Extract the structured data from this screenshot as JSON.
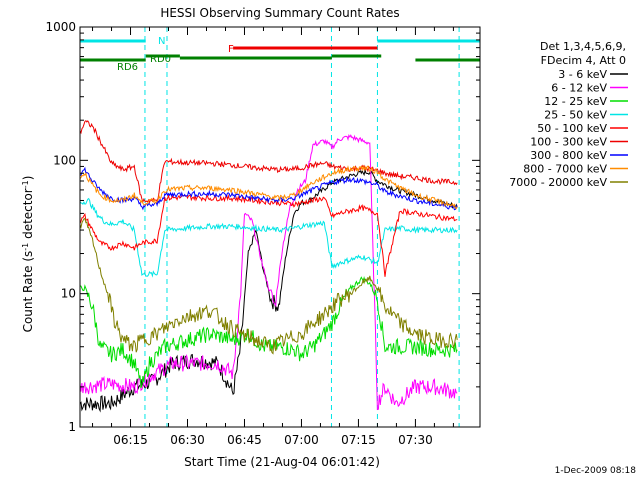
{
  "chart_data": {
    "type": "line",
    "title": "HESSI Observing Summary Count Rates",
    "xlabel": "Start Time (21-Aug-04 06:01:42)",
    "ylabel_main": "Count Rate (s",
    "ylabel_sup": "-1",
    "ylabel_rest": " detector",
    "ylabel_end": ")",
    "footer_date": "1-Dec-2009 08:18",
    "yscale": "log",
    "ylim": [
      1,
      1000
    ],
    "xlim_minutes": [
      361.7,
      467
    ],
    "x_ticks": [
      {
        "value": 375,
        "label": "06:15"
      },
      {
        "value": 390,
        "label": "06:30"
      },
      {
        "value": 405,
        "label": "06:45"
      },
      {
        "value": 420,
        "label": "07:00"
      },
      {
        "value": 435,
        "label": "07:15"
      },
      {
        "value": 450,
        "label": "07:30"
      }
    ],
    "y_ticks": [
      {
        "value": 1,
        "label": "1"
      },
      {
        "value": 10,
        "label": "10"
      },
      {
        "value": 100,
        "label": "100"
      },
      {
        "value": 1000,
        "label": "1000"
      }
    ],
    "legend_header": [
      "Det 1,3,4,5,6,9,",
      "FDecim 4, Att 0"
    ],
    "legend_placement": "right",
    "series": [
      {
        "name": "3 - 6 keV",
        "color": "#000000",
        "points": [
          [
            361.7,
            1.5
          ],
          [
            370,
            1.5
          ],
          [
            376,
            2.0
          ],
          [
            381,
            2.2
          ],
          [
            386,
            3
          ],
          [
            392,
            3.2
          ],
          [
            398,
            3
          ],
          [
            402,
            1.8
          ],
          [
            404,
            4
          ],
          [
            406,
            20
          ],
          [
            408,
            30
          ],
          [
            410,
            15
          ],
          [
            412,
            9
          ],
          [
            414,
            8
          ],
          [
            416,
            20
          ],
          [
            418,
            40
          ],
          [
            420,
            48
          ],
          [
            422,
            50
          ],
          [
            425,
            58
          ],
          [
            428,
            68
          ],
          [
            432,
            75
          ],
          [
            435,
            80
          ],
          [
            438,
            82
          ],
          [
            440,
            70
          ],
          [
            445,
            60
          ],
          [
            450,
            55
          ],
          [
            455,
            50
          ],
          [
            461,
            45
          ]
        ]
      },
      {
        "name": "6 - 12 keV",
        "color": "#ff00ff",
        "points": [
          [
            361.7,
            2
          ],
          [
            370,
            2.1
          ],
          [
            376,
            2.0
          ],
          [
            381,
            2.5
          ],
          [
            386,
            3
          ],
          [
            392,
            3
          ],
          [
            398,
            3
          ],
          [
            402,
            2.5
          ],
          [
            404,
            10
          ],
          [
            405,
            40
          ],
          [
            407,
            35
          ],
          [
            409,
            20
          ],
          [
            411,
            12
          ],
          [
            413,
            8
          ],
          [
            415,
            22
          ],
          [
            417,
            45
          ],
          [
            419,
            60
          ],
          [
            421,
            70
          ],
          [
            423,
            130
          ],
          [
            426,
            140
          ],
          [
            428,
            125
          ],
          [
            430,
            145
          ],
          [
            433,
            150
          ],
          [
            436,
            140
          ],
          [
            438,
            135
          ],
          [
            440,
            1.5
          ],
          [
            442,
            2
          ],
          [
            445,
            1.5
          ],
          [
            450,
            2
          ],
          [
            455,
            2
          ],
          [
            461,
            1.8
          ]
        ]
      },
      {
        "name": "12 - 25 keV",
        "color": "#00dd00",
        "points": [
          [
            361.7,
            11
          ],
          [
            363,
            11
          ],
          [
            365,
            8
          ],
          [
            367,
            4
          ],
          [
            370,
            3.5
          ],
          [
            373,
            3.8
          ],
          [
            376,
            3
          ],
          [
            378,
            2
          ],
          [
            380,
            3
          ],
          [
            384,
            4
          ],
          [
            390,
            4.5
          ],
          [
            396,
            5
          ],
          [
            402,
            4.5
          ],
          [
            406,
            5
          ],
          [
            410,
            4
          ],
          [
            414,
            4
          ],
          [
            418,
            3.8
          ],
          [
            420,
            3.5
          ],
          [
            423,
            4
          ],
          [
            426,
            5
          ],
          [
            428,
            6
          ],
          [
            430,
            8
          ],
          [
            433,
            11
          ],
          [
            436,
            13
          ],
          [
            438,
            12
          ],
          [
            440,
            9
          ],
          [
            442,
            4
          ],
          [
            446,
            4
          ],
          [
            450,
            4
          ],
          [
            455,
            3.8
          ],
          [
            461,
            3.8
          ]
        ]
      },
      {
        "name": "25 - 50 keV",
        "color": "#00e5e5",
        "points": [
          [
            361.7,
            48
          ],
          [
            364,
            50
          ],
          [
            366,
            40
          ],
          [
            368,
            35
          ],
          [
            370,
            33
          ],
          [
            373,
            35
          ],
          [
            376,
            30
          ],
          [
            378,
            14
          ],
          [
            382,
            14
          ],
          [
            384,
            30
          ],
          [
            390,
            31
          ],
          [
            396,
            32
          ],
          [
            402,
            32
          ],
          [
            408,
            31
          ],
          [
            414,
            30
          ],
          [
            418,
            31
          ],
          [
            420,
            32
          ],
          [
            423,
            33
          ],
          [
            426,
            34
          ],
          [
            428,
            16
          ],
          [
            430,
            17
          ],
          [
            433,
            18
          ],
          [
            436,
            19
          ],
          [
            438,
            18
          ],
          [
            440,
            17
          ],
          [
            442,
            30
          ],
          [
            446,
            31
          ],
          [
            450,
            30
          ],
          [
            455,
            30
          ],
          [
            461,
            30
          ]
        ]
      },
      {
        "name": "50 - 100 keV",
        "color": "#ff0000",
        "points": [
          [
            361.7,
            35
          ],
          [
            363,
            38
          ],
          [
            365,
            30
          ],
          [
            367,
            24
          ],
          [
            370,
            22
          ],
          [
            373,
            24
          ],
          [
            376,
            22
          ],
          [
            378,
            24
          ],
          [
            382,
            25
          ],
          [
            384,
            52
          ],
          [
            390,
            53
          ],
          [
            396,
            52
          ],
          [
            402,
            52
          ],
          [
            408,
            50
          ],
          [
            414,
            48
          ],
          [
            418,
            47
          ],
          [
            420,
            48
          ],
          [
            423,
            50
          ],
          [
            426,
            52
          ],
          [
            428,
            38
          ],
          [
            430,
            40
          ],
          [
            433,
            42
          ],
          [
            436,
            44
          ],
          [
            438,
            42
          ],
          [
            440,
            40
          ],
          [
            442,
            14
          ],
          [
            446,
            42
          ],
          [
            450,
            40
          ],
          [
            455,
            38
          ],
          [
            461,
            36
          ]
        ]
      },
      {
        "name": "100 - 300 keV",
        "color": "#ee0000",
        "points": [
          [
            361.7,
            160
          ],
          [
            363,
            195
          ],
          [
            365,
            180
          ],
          [
            367,
            140
          ],
          [
            370,
            95
          ],
          [
            373,
            85
          ],
          [
            376,
            90
          ],
          [
            378,
            50
          ],
          [
            382,
            50
          ],
          [
            384,
            98
          ],
          [
            390,
            96
          ],
          [
            396,
            95
          ],
          [
            402,
            92
          ],
          [
            408,
            88
          ],
          [
            414,
            85
          ],
          [
            418,
            86
          ],
          [
            420,
            88
          ],
          [
            423,
            92
          ],
          [
            426,
            95
          ],
          [
            428,
            90
          ],
          [
            430,
            88
          ],
          [
            433,
            86
          ],
          [
            436,
            88
          ],
          [
            438,
            86
          ],
          [
            440,
            84
          ],
          [
            442,
            80
          ],
          [
            446,
            76
          ],
          [
            450,
            74
          ],
          [
            455,
            70
          ],
          [
            461,
            68
          ]
        ]
      },
      {
        "name": "300 - 800 keV",
        "color": "#0000ff",
        "points": [
          [
            361.7,
            80
          ],
          [
            363,
            85
          ],
          [
            365,
            70
          ],
          [
            367,
            60
          ],
          [
            370,
            52
          ],
          [
            373,
            50
          ],
          [
            376,
            52
          ],
          [
            378,
            45
          ],
          [
            382,
            47
          ],
          [
            384,
            55
          ],
          [
            390,
            56
          ],
          [
            396,
            56
          ],
          [
            402,
            55
          ],
          [
            408,
            52
          ],
          [
            414,
            50
          ],
          [
            418,
            52
          ],
          [
            420,
            55
          ],
          [
            423,
            60
          ],
          [
            426,
            65
          ],
          [
            428,
            68
          ],
          [
            430,
            70
          ],
          [
            433,
            72
          ],
          [
            436,
            70
          ],
          [
            438,
            68
          ],
          [
            440,
            65
          ],
          [
            442,
            58
          ],
          [
            446,
            54
          ],
          [
            450,
            50
          ],
          [
            455,
            47
          ],
          [
            461,
            44
          ]
        ]
      },
      {
        "name": "800 - 7000 keV",
        "color": "#ff8c00",
        "points": [
          [
            361.7,
            75
          ],
          [
            363,
            80
          ],
          [
            365,
            65
          ],
          [
            367,
            55
          ],
          [
            370,
            50
          ],
          [
            373,
            50
          ],
          [
            376,
            55
          ],
          [
            378,
            48
          ],
          [
            382,
            50
          ],
          [
            384,
            60
          ],
          [
            390,
            62
          ],
          [
            396,
            62
          ],
          [
            402,
            60
          ],
          [
            408,
            56
          ],
          [
            414,
            52
          ],
          [
            418,
            55
          ],
          [
            420,
            60
          ],
          [
            423,
            68
          ],
          [
            426,
            75
          ],
          [
            428,
            80
          ],
          [
            430,
            83
          ],
          [
            433,
            86
          ],
          [
            436,
            88
          ],
          [
            438,
            86
          ],
          [
            440,
            82
          ],
          [
            442,
            72
          ],
          [
            446,
            62
          ],
          [
            450,
            55
          ],
          [
            455,
            50
          ],
          [
            461,
            45
          ]
        ]
      },
      {
        "name": "7000 - 20000 keV",
        "color": "#808000",
        "points": [
          [
            361.7,
            32
          ],
          [
            363,
            36
          ],
          [
            365,
            25
          ],
          [
            367,
            15
          ],
          [
            369,
            10
          ],
          [
            371,
            6
          ],
          [
            373,
            4.5
          ],
          [
            376,
            4
          ],
          [
            378,
            4.5
          ],
          [
            382,
            5
          ],
          [
            384,
            5.5
          ],
          [
            388,
            6.5
          ],
          [
            392,
            7
          ],
          [
            396,
            7.5
          ],
          [
            400,
            6
          ],
          [
            404,
            5
          ],
          [
            408,
            4.5
          ],
          [
            412,
            4
          ],
          [
            416,
            4.5
          ],
          [
            420,
            5
          ],
          [
            423,
            6
          ],
          [
            426,
            7
          ],
          [
            428,
            8
          ],
          [
            430,
            9
          ],
          [
            433,
            10
          ],
          [
            436,
            12
          ],
          [
            438,
            13
          ],
          [
            440,
            11
          ],
          [
            442,
            8
          ],
          [
            446,
            6
          ],
          [
            450,
            5
          ],
          [
            455,
            4.5
          ],
          [
            461,
            4.5
          ]
        ]
      }
    ],
    "flags": [
      {
        "label": "N",
        "color": "#00e5e5",
        "segments": [
          [
            361.7,
            379
          ],
          [
            440,
            467
          ]
        ],
        "level": "top"
      },
      {
        "label": "F",
        "color": "#ee0000",
        "segments": [
          [
            402,
            440
          ]
        ],
        "level": "mid"
      },
      {
        "label": "RD0",
        "color": "#008000",
        "segments": [
          [
            379,
            388
          ],
          [
            428,
            441
          ]
        ],
        "level": "rd0"
      },
      {
        "label": "RD6",
        "color": "#008000",
        "segments": [
          [
            361.7,
            379
          ],
          [
            388,
            428
          ],
          [
            450,
            467
          ]
        ],
        "level": "rd6"
      }
    ],
    "vlines": [
      {
        "x": 361.7,
        "color": "#00e5e5",
        "style": "dashed"
      },
      {
        "x": 378.8,
        "color": "#00e5e5",
        "style": "dashed"
      },
      {
        "x": 384.6,
        "color": "#00e5e5",
        "style": "dashed"
      },
      {
        "x": 427.9,
        "color": "#00e5e5",
        "style": "dashed"
      },
      {
        "x": 440.0,
        "color": "#00e5e5",
        "style": "dashed"
      },
      {
        "x": 461.5,
        "color": "#00e5e5",
        "style": "dashed"
      }
    ]
  }
}
